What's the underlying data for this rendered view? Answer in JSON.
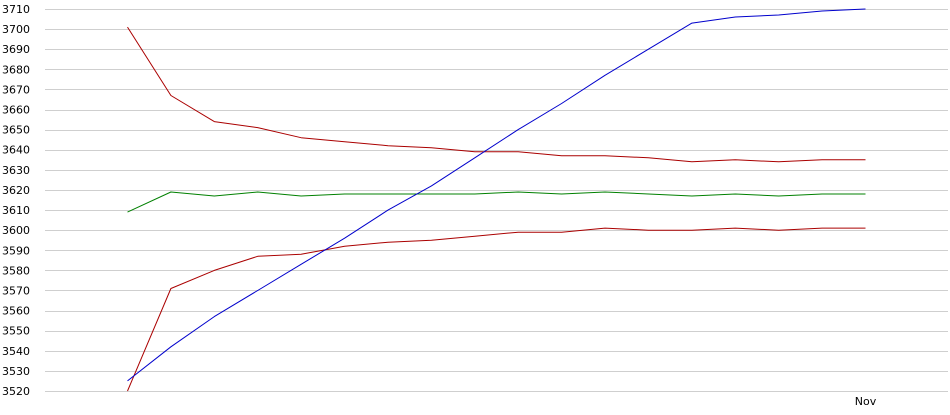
{
  "chart_data": {
    "type": "line",
    "title": "",
    "xlabel": "",
    "ylabel": "",
    "ylim": [
      3520,
      3710
    ],
    "yticks": [
      3520,
      3530,
      3540,
      3550,
      3560,
      3570,
      3580,
      3590,
      3600,
      3610,
      3620,
      3630,
      3640,
      3650,
      3660,
      3670,
      3680,
      3690,
      3700,
      3710
    ],
    "x": [
      0,
      1,
      2,
      3,
      4,
      5,
      6,
      7,
      8,
      9,
      10,
      11,
      12,
      13,
      14,
      15,
      16,
      17
    ],
    "xlim": [
      -1.9,
      18.9
    ],
    "xticks": [
      {
        "x": 17,
        "label": "Nov"
      }
    ],
    "grid": true,
    "legend": "none",
    "series": [
      {
        "color": "#aa0000",
        "values": [
          3701,
          3667,
          3654,
          3651,
          3646,
          3644,
          3642,
          3641,
          3639,
          3639,
          3637,
          3637,
          3636,
          3634,
          3635,
          3634,
          3635,
          3635
        ]
      },
      {
        "color": "#008000",
        "values": [
          3609,
          3619,
          3617,
          3619,
          3617,
          3618,
          3618,
          3618,
          3618,
          3619,
          3618,
          3619,
          3618,
          3617,
          3618,
          3617,
          3618,
          3618
        ]
      },
      {
        "color": "#aa0000",
        "values": [
          3520,
          3571,
          3580,
          3587,
          3588,
          3592,
          3594,
          3595,
          3597,
          3599,
          3599,
          3601,
          3600,
          3600,
          3601,
          3600,
          3601,
          3601
        ]
      },
      {
        "color": "#0000cc",
        "values": [
          3525,
          3542,
          3557,
          3570,
          3583,
          3596,
          3610,
          3622,
          3636,
          3650,
          3663,
          3677,
          3690,
          3703,
          3706,
          3707,
          3709,
          3710
        ]
      }
    ]
  }
}
